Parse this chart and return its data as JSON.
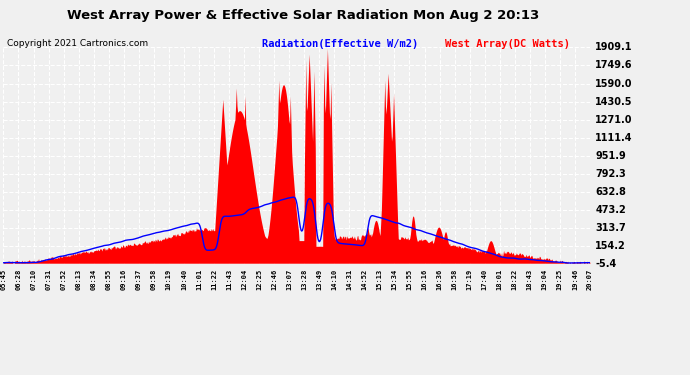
{
  "title": "West Array Power & Effective Solar Radiation Mon Aug 2 20:13",
  "copyright": "Copyright 2021 Cartronics.com",
  "legend_radiation": "Radiation(Effective W/m2)",
  "legend_westarray": "West Array(DC Watts)",
  "y_ticks": [
    1909.1,
    1749.6,
    1590.0,
    1430.5,
    1271.0,
    1111.4,
    951.9,
    792.3,
    632.8,
    473.2,
    313.7,
    154.2,
    -5.4
  ],
  "y_min": -5.4,
  "y_max": 1909.1,
  "x_labels": [
    "05:45",
    "06:28",
    "07:10",
    "07:31",
    "07:52",
    "08:13",
    "08:34",
    "08:55",
    "09:16",
    "09:37",
    "09:58",
    "10:19",
    "10:40",
    "11:01",
    "11:22",
    "11:43",
    "12:04",
    "12:25",
    "12:46",
    "13:07",
    "13:28",
    "13:49",
    "14:10",
    "14:31",
    "14:52",
    "15:13",
    "15:34",
    "15:55",
    "16:16",
    "16:36",
    "16:58",
    "17:19",
    "17:40",
    "18:01",
    "18:22",
    "18:43",
    "19:04",
    "19:25",
    "19:46",
    "20:07"
  ],
  "bg_color": "#f0f0f0",
  "plot_bg_color": "#f0f0f0",
  "grid_color": "#ffffff",
  "red_color": "#ff0000",
  "blue_color": "#0000ff",
  "title_color": "#000000",
  "copyright_color": "#000000",
  "radiation_color": "#0000ff",
  "westarray_color": "#ff0000"
}
